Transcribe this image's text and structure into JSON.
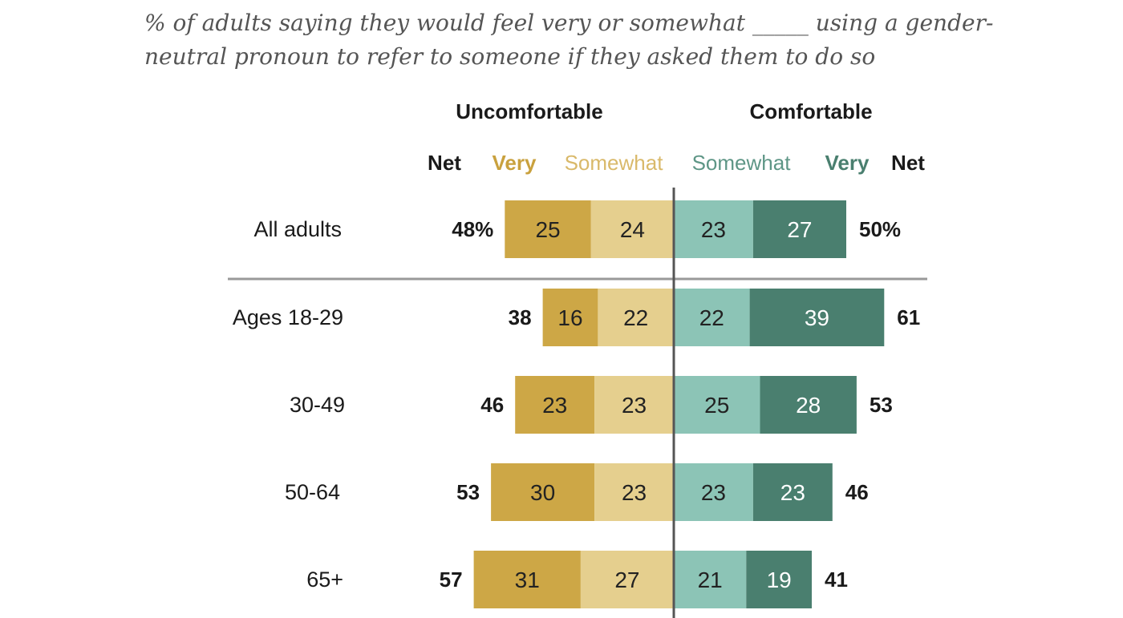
{
  "subtitle": "% of adults saying they would feel very or somewhat _____ using a gender-neutral pronoun to refer to someone if they asked them to do so",
  "colors": {
    "very_uncomfortable": "#cda746",
    "somewhat_uncomfortable": "#e5cf8e",
    "somewhat_comfortable": "#8cc4b6",
    "very_comfortable": "#4a7f6f",
    "very_uncomfortable_label": "#c9a13e",
    "somewhat_uncomfortable_label": "#d9b96a",
    "somewhat_comfortable_label": "#5e9686",
    "very_comfortable_label": "#4a7f6f",
    "text": "#1a1a1a",
    "divider": "#555555"
  },
  "chart_data": {
    "type": "bar",
    "orientation": "horizontal-diverging-stacked",
    "group_labels": {
      "left": "Uncomfortable",
      "right": "Comfortable"
    },
    "column_labels": {
      "left_net": "Net",
      "left_very": "Very",
      "left_somewhat": "Somewhat",
      "right_somewhat": "Somewhat",
      "right_very": "Very",
      "right_net": "Net"
    },
    "categories": [
      "All adults",
      "Ages 18-29",
      "30-49",
      "50-64",
      "65+"
    ],
    "series": [
      {
        "name": "Very uncomfortable",
        "values": [
          25,
          16,
          23,
          30,
          31
        ]
      },
      {
        "name": "Somewhat uncomfortable",
        "values": [
          24,
          22,
          23,
          23,
          27
        ]
      },
      {
        "name": "Somewhat comfortable",
        "values": [
          23,
          22,
          25,
          23,
          21
        ]
      },
      {
        "name": "Very comfortable",
        "values": [
          27,
          39,
          28,
          23,
          19
        ]
      }
    ],
    "net_uncomfortable": [
      "48%",
      "38",
      "46",
      "53",
      "57"
    ],
    "net_comfortable": [
      "50%",
      "61",
      "53",
      "46",
      "41"
    ]
  }
}
